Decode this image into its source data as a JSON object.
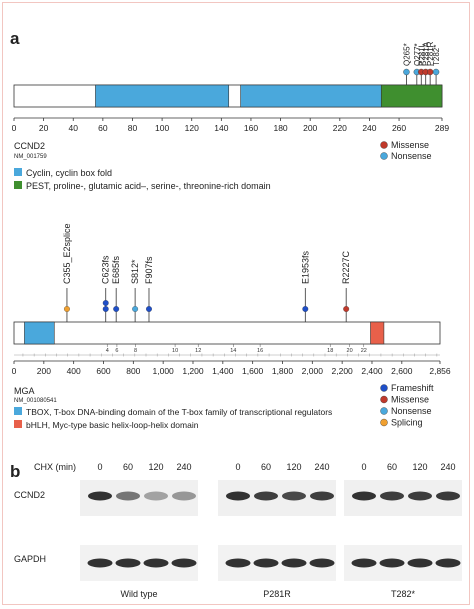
{
  "panel_a": {
    "label": "a",
    "ccnd2": {
      "gene": "CCND2",
      "accession": "NM_001759",
      "length": 289,
      "axis_ticks": [
        0,
        20,
        40,
        60,
        80,
        100,
        120,
        140,
        160,
        180,
        200,
        220,
        240,
        260,
        289
      ],
      "domains": [
        {
          "start": 55,
          "end": 145,
          "kind": "cyclin",
          "color": "#4aa8dc"
        },
        {
          "start": 153,
          "end": 248,
          "kind": "cyclin",
          "color": "#4aa8dc"
        },
        {
          "start": 248,
          "end": 289,
          "kind": "pest",
          "color": "#3f8f2f"
        }
      ],
      "mutations": [
        {
          "label": "Q265*",
          "pos": 265,
          "type": "nonsense"
        },
        {
          "label": "Q277*",
          "pos": 272,
          "type": "nonsense"
        },
        {
          "label": "P281L",
          "pos": 275,
          "type": "missense"
        },
        {
          "label": "P281A",
          "pos": 278,
          "type": "missense"
        },
        {
          "label": "P281R",
          "pos": 281,
          "type": "missense"
        },
        {
          "label": "T282*",
          "pos": 285,
          "type": "nonsense"
        }
      ],
      "legend": [
        {
          "label": "Missense",
          "color": "#c0392b"
        },
        {
          "label": "Nonsense",
          "color": "#4aa8dc"
        }
      ],
      "domain_legend": [
        {
          "label": "Cyclin, cyclin box fold",
          "color": "#4aa8dc"
        },
        {
          "label": "PEST, proline-, glutamic acid–, serine-, threonine-rich domain",
          "color": "#3f8f2f"
        }
      ]
    },
    "mga": {
      "gene": "MGA",
      "accession": "NM_001080541",
      "length": 2856,
      "axis_ticks": [
        0,
        200,
        400,
        600,
        800,
        1000,
        1200,
        1400,
        1600,
        1800,
        2000,
        2200,
        2400,
        2600,
        2856
      ],
      "axis_tick_labels": [
        "0",
        "200",
        "400",
        "600",
        "800",
        "1,000",
        "1,200",
        "1,400",
        "1,600",
        "1,800",
        "2,000",
        "2,200",
        "2,400",
        "2,600",
        "2,856"
      ],
      "domains": [
        {
          "start": 70,
          "end": 270,
          "kind": "tbox",
          "color": "#4aa8dc"
        },
        {
          "start": 2390,
          "end": 2480,
          "kind": "bhlh",
          "color": "#e8604a"
        }
      ],
      "exons": [
        {
          "label": "4",
          "pos": 625
        },
        {
          "label": "6",
          "pos": 690
        },
        {
          "label": "8",
          "pos": 815
        },
        {
          "label": "10",
          "pos": 1080
        },
        {
          "label": "12",
          "pos": 1235
        },
        {
          "label": "14",
          "pos": 1470
        },
        {
          "label": "16",
          "pos": 1650
        },
        {
          "label": "18",
          "pos": 2120
        },
        {
          "label": "20",
          "pos": 2250
        },
        {
          "label": "22",
          "pos": 2345
        }
      ],
      "mutations": [
        {
          "label": "C355_E2splice",
          "pos": 355,
          "type": "splicing",
          "stack": 1
        },
        {
          "label": "C623fs",
          "pos": 615,
          "type": "frameshift",
          "stack": 2
        },
        {
          "label": "E685fs",
          "pos": 685,
          "type": "frameshift",
          "stack": 1
        },
        {
          "label": "S812*",
          "pos": 812,
          "type": "nonsense",
          "stack": 1
        },
        {
          "label": "F907fs",
          "pos": 905,
          "type": "frameshift",
          "stack": 1
        },
        {
          "label": "E1953fs",
          "pos": 1953,
          "type": "frameshift",
          "stack": 1
        },
        {
          "label": "R2227C",
          "pos": 2227,
          "type": "missense",
          "stack": 1
        }
      ],
      "legend": [
        {
          "label": "Frameshift",
          "color": "#1f4fc8"
        },
        {
          "label": "Missense",
          "color": "#c0392b"
        },
        {
          "label": "Nonsense",
          "color": "#4aa8dc"
        },
        {
          "label": "Splicing",
          "color": "#f0a030"
        }
      ],
      "domain_legend": [
        {
          "label": "TBOX, T-box DNA-binding domain of the T-box family of transcriptional regulators",
          "color": "#4aa8dc"
        },
        {
          "label": "bHLH, Myc-type basic helix-loop-helix domain",
          "color": "#e8604a"
        }
      ]
    }
  },
  "panel_b": {
    "label": "b",
    "chx_label": "CHX (min)",
    "timepoints": [
      "0",
      "60",
      "120",
      "240"
    ],
    "row_labels": [
      "CCND2",
      "GAPDH"
    ],
    "groups": [
      {
        "name": "Wild type",
        "ccnd2": [
          0.85,
          0.55,
          0.35,
          0.4
        ],
        "gapdh": [
          0.85,
          0.85,
          0.85,
          0.85
        ]
      },
      {
        "name": "P281R",
        "ccnd2": [
          0.85,
          0.8,
          0.75,
          0.8
        ],
        "gapdh": [
          0.85,
          0.85,
          0.85,
          0.85
        ]
      },
      {
        "name": "T282*",
        "ccnd2": [
          0.85,
          0.8,
          0.8,
          0.82
        ],
        "gapdh": [
          0.85,
          0.85,
          0.85,
          0.85
        ]
      }
    ]
  },
  "colors": {
    "missense": "#c0392b",
    "nonsense": "#4aa8dc",
    "frameshift": "#1f4fc8",
    "splicing": "#f0a030"
  }
}
